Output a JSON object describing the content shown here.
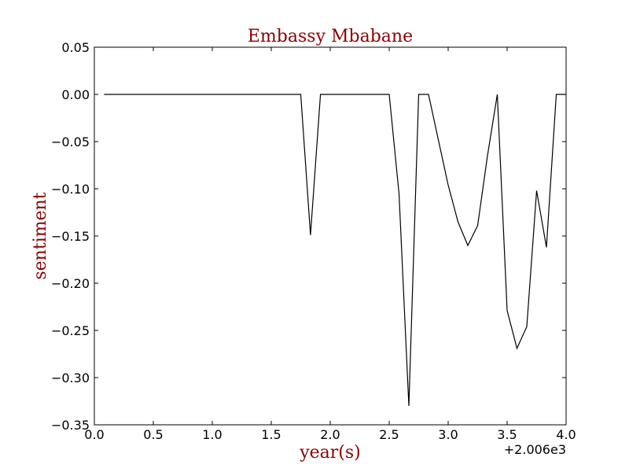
{
  "chart_data": {
    "type": "line",
    "title": "Embassy Mbabane",
    "xlabel": "year(s)",
    "ylabel": "sentiment",
    "x_offset_label": "+2.006e3",
    "xlim": [
      0.0,
      4.0
    ],
    "ylim": [
      -0.35,
      0.05
    ],
    "x_ticks": [
      0.0,
      0.5,
      1.0,
      1.5,
      2.0,
      2.5,
      3.0,
      3.5,
      4.0
    ],
    "x_tick_labels": [
      "0.0",
      "0.5",
      "1.0",
      "1.5",
      "2.0",
      "2.5",
      "3.0",
      "3.5",
      "4.0"
    ],
    "y_ticks": [
      0.05,
      0.0,
      -0.05,
      -0.1,
      -0.15,
      -0.2,
      -0.25,
      -0.3,
      -0.35
    ],
    "y_tick_labels": [
      "0.05",
      "0.00",
      "−0.05",
      "−0.10",
      "−0.15",
      "−0.20",
      "−0.25",
      "−0.30",
      "−0.35"
    ],
    "grid": false,
    "colors": {
      "line": "#000000",
      "title": "#8b0000",
      "axis_label": "#8b0000"
    },
    "series": [
      {
        "x": [
          0.083,
          1.75,
          1.833,
          1.917,
          2.5,
          2.583,
          2.667,
          2.75,
          2.833,
          3.0,
          3.083,
          3.167,
          3.25,
          3.333,
          3.417,
          3.5,
          3.583,
          3.667,
          3.75,
          3.833,
          3.917,
          4.0
        ],
        "y": [
          0.0,
          0.0,
          -0.149,
          0.0,
          0.0,
          -0.105,
          -0.33,
          0.0,
          0.0,
          -0.096,
          -0.135,
          -0.16,
          -0.139,
          -0.065,
          0.0,
          -0.229,
          -0.269,
          -0.246,
          -0.102,
          -0.162,
          0.0,
          0.0
        ]
      }
    ]
  }
}
